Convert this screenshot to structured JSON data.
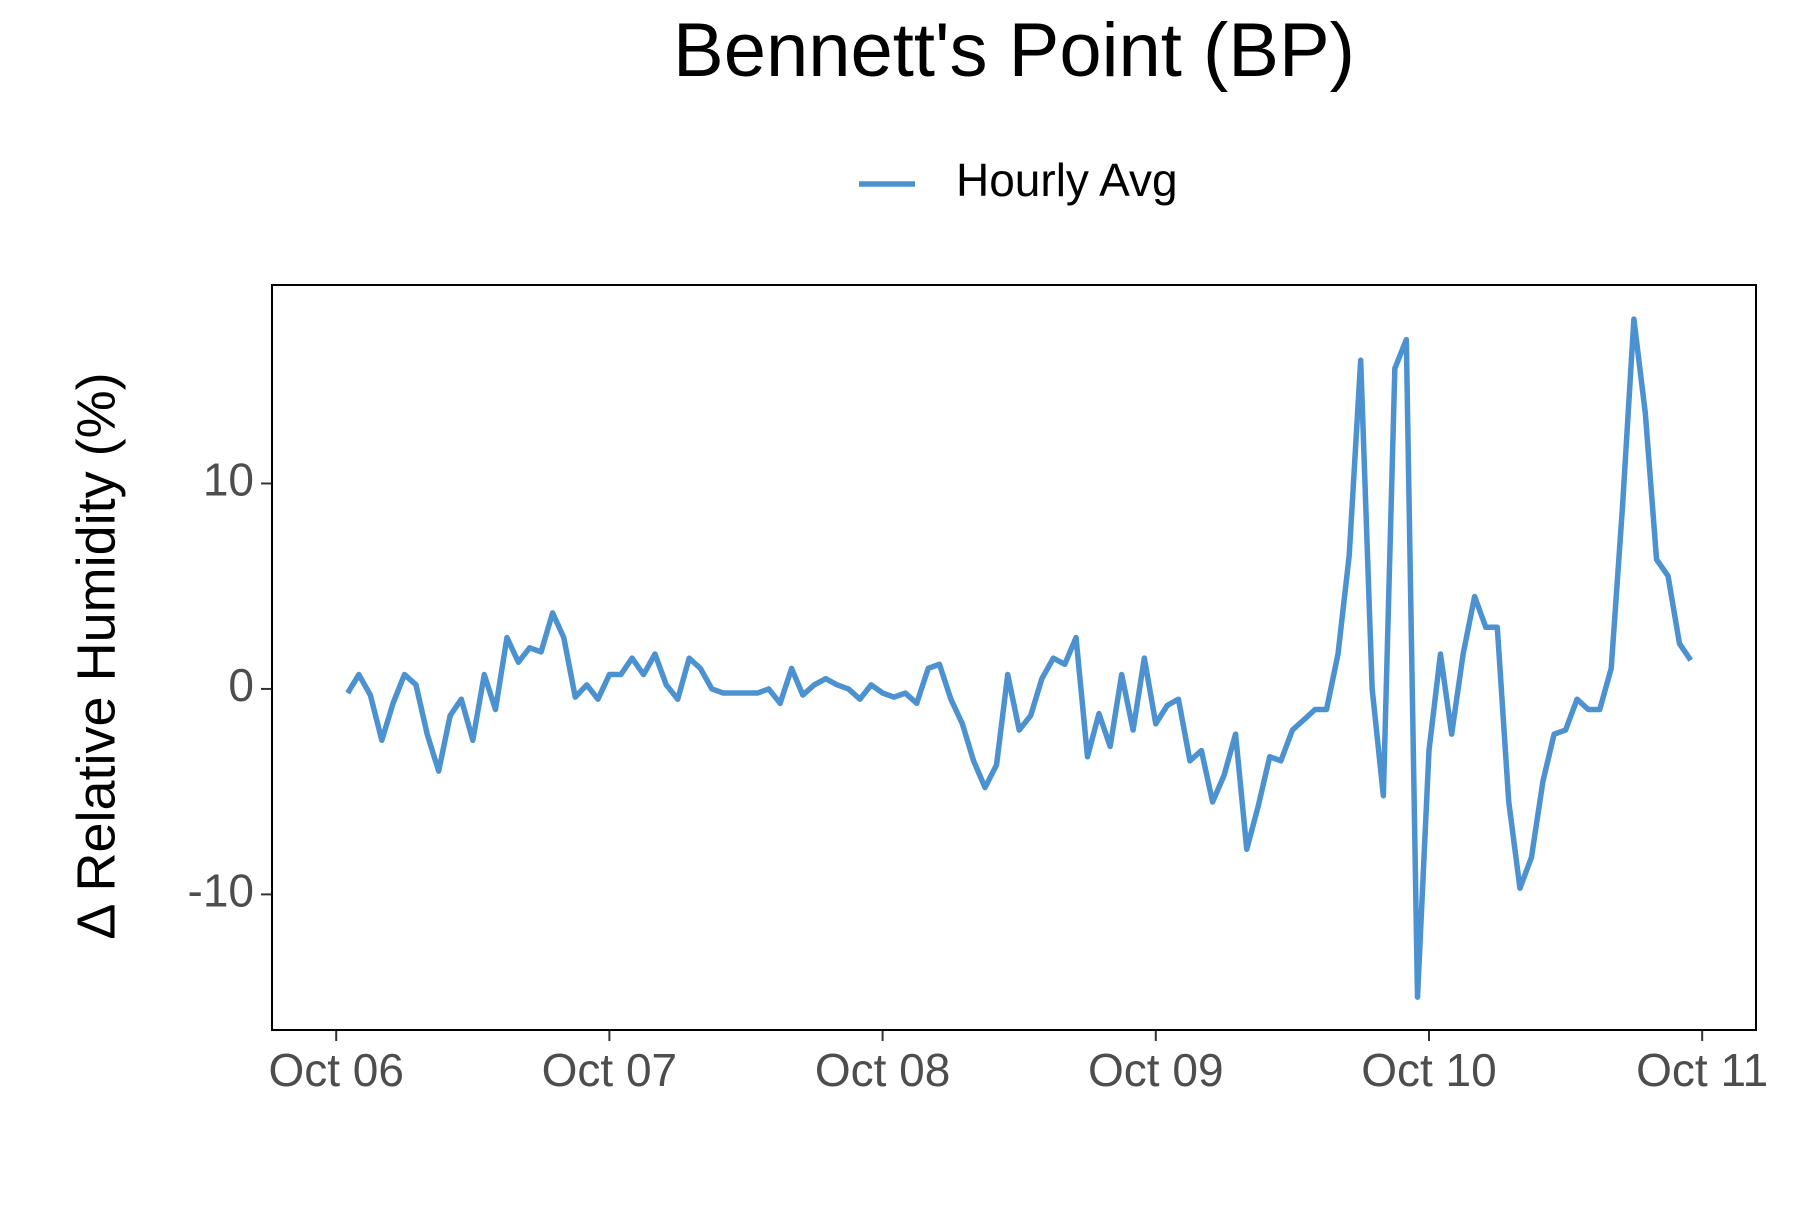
{
  "chart_data": {
    "type": "line",
    "title": "Bennett's Point (BP)",
    "y_label": "Δ Relative Humidity (%)",
    "legend_position": "top",
    "xlim": [
      -0.235,
      5.197
    ],
    "xticks": [
      {
        "value": 0,
        "label": "Oct 06"
      },
      {
        "value": 1,
        "label": "Oct 07"
      },
      {
        "value": 2,
        "label": "Oct 08"
      },
      {
        "value": 3,
        "label": "Oct 09"
      },
      {
        "value": 4,
        "label": "Oct 10"
      },
      {
        "value": 5,
        "label": "Oct 11"
      }
    ],
    "ylim": [
      -16.6,
      19.66
    ],
    "yticks": [
      -10,
      0,
      10
    ],
    "grid": false,
    "x": [
      0.042,
      0.083,
      0.125,
      0.167,
      0.208,
      0.25,
      0.292,
      0.333,
      0.375,
      0.417,
      0.458,
      0.5,
      0.542,
      0.583,
      0.625,
      0.667,
      0.708,
      0.75,
      0.792,
      0.833,
      0.875,
      0.917,
      0.958,
      1,
      1.042,
      1.083,
      1.125,
      1.167,
      1.208,
      1.25,
      1.292,
      1.333,
      1.375,
      1.417,
      1.458,
      1.5,
      1.542,
      1.583,
      1.625,
      1.667,
      1.708,
      1.75,
      1.792,
      1.833,
      1.875,
      1.917,
      1.958,
      2,
      2.042,
      2.083,
      2.125,
      2.167,
      2.208,
      2.25,
      2.292,
      2.333,
      2.375,
      2.417,
      2.458,
      2.5,
      2.542,
      2.583,
      2.625,
      2.667,
      2.708,
      2.75,
      2.792,
      2.833,
      2.875,
      2.917,
      2.958,
      3,
      3.042,
      3.083,
      3.125,
      3.167,
      3.208,
      3.25,
      3.292,
      3.333,
      3.375,
      3.417,
      3.458,
      3.5,
      3.542,
      3.583,
      3.625,
      3.667,
      3.708,
      3.75,
      3.792,
      3.833,
      3.875,
      3.917,
      3.958,
      4,
      4.042,
      4.083,
      4.125,
      4.167,
      4.208,
      4.25,
      4.292,
      4.333,
      4.375,
      4.417,
      4.458,
      4.5,
      4.542,
      4.583,
      4.625,
      4.667,
      4.708,
      4.75,
      4.792,
      4.833,
      4.875,
      4.917,
      4.958
    ],
    "series": [
      {
        "name": "Hourly Avg",
        "color": "#4d92d0",
        "values": [
          -0.2,
          0.7,
          -0.3,
          -2.5,
          -0.7,
          0.7,
          0.2,
          -2.2,
          -4.0,
          -1.3,
          -0.5,
          -2.5,
          0.7,
          -1.0,
          2.5,
          1.3,
          2.0,
          1.8,
          3.7,
          2.5,
          -0.4,
          0.2,
          -0.5,
          0.7,
          0.7,
          1.5,
          0.7,
          1.7,
          0.2,
          -0.5,
          1.5,
          1.0,
          0,
          -0.2,
          -0.2,
          -0.2,
          -0.2,
          0,
          -0.7,
          1.0,
          -0.3,
          0.2,
          0.5,
          0.2,
          0,
          -0.5,
          0.2,
          -0.2,
          -0.4,
          -0.2,
          -0.7,
          1.0,
          1.2,
          -0.5,
          -1.7,
          -3.5,
          -4.8,
          -3.7,
          0.7,
          -2.0,
          -1.3,
          0.5,
          1.5,
          1.2,
          2.5,
          -3.3,
          -1.2,
          -2.8,
          0.7,
          -2.0,
          1.5,
          -1.7,
          -0.8,
          -0.5,
          -3.5,
          -3.0,
          -5.5,
          -4.2,
          -2.2,
          -7.8,
          -5.7,
          -3.3,
          -3.5,
          -2.0,
          -1.5,
          -1.0,
          -1.0,
          1.7,
          6.5,
          16.0,
          0,
          -5.2,
          15.6,
          17.0,
          -15.0,
          -3.0,
          1.7,
          -2.2,
          1.7,
          4.5,
          3.0,
          3.0,
          -5.5,
          -9.7,
          -8.2,
          -4.5,
          -2.2,
          -2.0,
          -0.5,
          -1.0,
          -1.0,
          1.0,
          8.8,
          18.0,
          13.4,
          6.3,
          5.5,
          2.2,
          1.4
        ]
      }
    ]
  }
}
